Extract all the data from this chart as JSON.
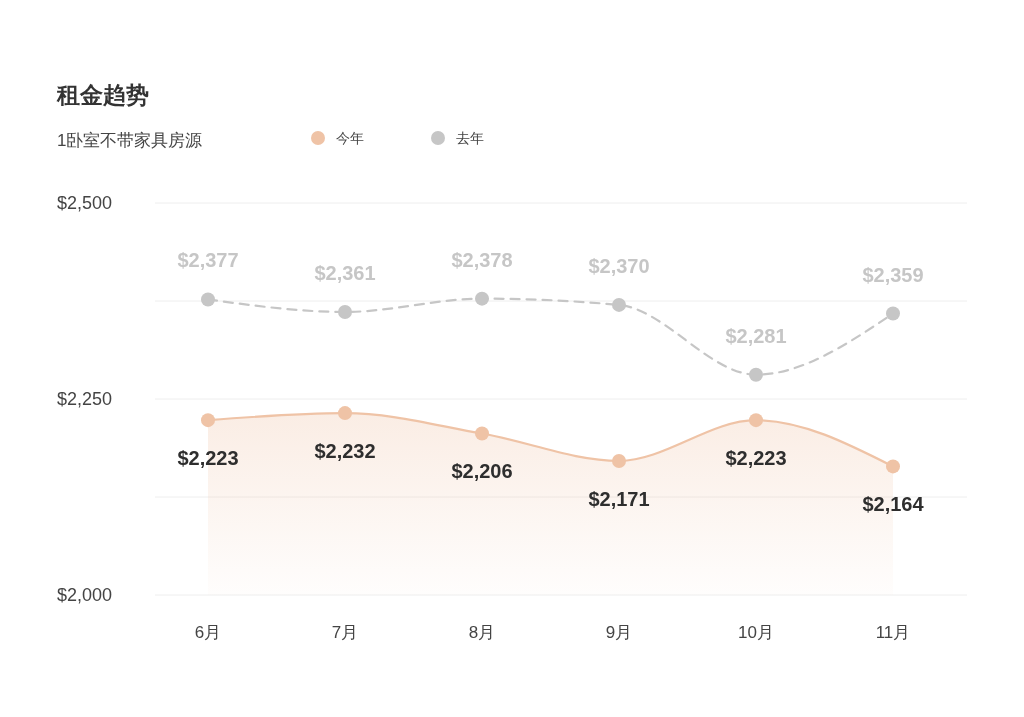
{
  "chart_data": {
    "type": "line",
    "title": "租金趋势",
    "subtitle": "1卧室不带家具房源",
    "categories": [
      "6月",
      "7月",
      "8月",
      "9月",
      "10月",
      "11月"
    ],
    "series": [
      {
        "name": "今年",
        "type": "area",
        "color": "#efc3a6",
        "values": [
          2223,
          2232,
          2206,
          2171,
          2223,
          2164
        ],
        "value_labels": [
          "$2,223",
          "$2,232",
          "$2,206",
          "$2,171",
          "$2,223",
          "$2,164"
        ]
      },
      {
        "name": "去年",
        "type": "line",
        "line_style": "dashed",
        "color": "#c6c6c6",
        "values": [
          2377,
          2361,
          2378,
          2370,
          2281,
          2359
        ],
        "value_labels": [
          "$2,377",
          "$2,361",
          "$2,378",
          "$2,370",
          "$2,281",
          "$2,359"
        ]
      }
    ],
    "ylim": [
      2000,
      2500
    ],
    "yticks": [
      {
        "value": 2000,
        "label": "$2,000"
      },
      {
        "value": 2125,
        "label": null
      },
      {
        "value": 2250,
        "label": "$2,250"
      },
      {
        "value": 2375,
        "label": null
      },
      {
        "value": 2500,
        "label": "$2,500"
      }
    ],
    "grid": "y",
    "legend": "top left",
    "marker": "circle"
  }
}
